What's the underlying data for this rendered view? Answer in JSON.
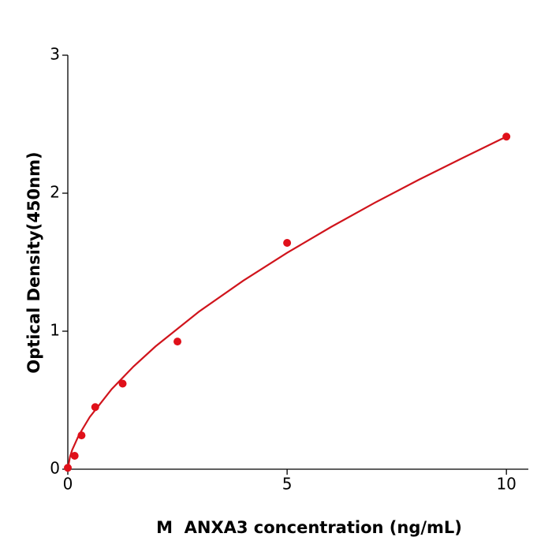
{
  "chart_data": {
    "type": "scatter",
    "xlabel": "M  ANXA3 concentration (ng/mL)",
    "ylabel": "Optical Density(450nm)",
    "xlim": [
      0,
      10.5
    ],
    "xticks": [
      0,
      5,
      10
    ],
    "ylim": [
      0,
      3
    ],
    "yticks": [
      0,
      1,
      2,
      3
    ],
    "series": [
      {
        "type": "scatter",
        "color": "#e0101a",
        "x": [
          0,
          0.156,
          0.3125,
          0.625,
          1.25,
          2.5,
          5,
          10
        ],
        "values": [
          0.01,
          0.097,
          0.245,
          0.45,
          0.62,
          0.925,
          1.64,
          2.41
        ]
      },
      {
        "type": "line",
        "color": "#d0141c",
        "x": [
          0,
          0.05,
          0.1,
          0.25,
          0.5,
          1,
          1.5,
          2,
          3,
          4,
          5,
          6,
          7,
          8,
          9,
          10
        ],
        "values": [
          0,
          0.091,
          0.14,
          0.246,
          0.378,
          0.58,
          0.745,
          0.89,
          1.144,
          1.366,
          1.568,
          1.755,
          1.931,
          2.097,
          2.255,
          2.41
        ]
      }
    ]
  }
}
